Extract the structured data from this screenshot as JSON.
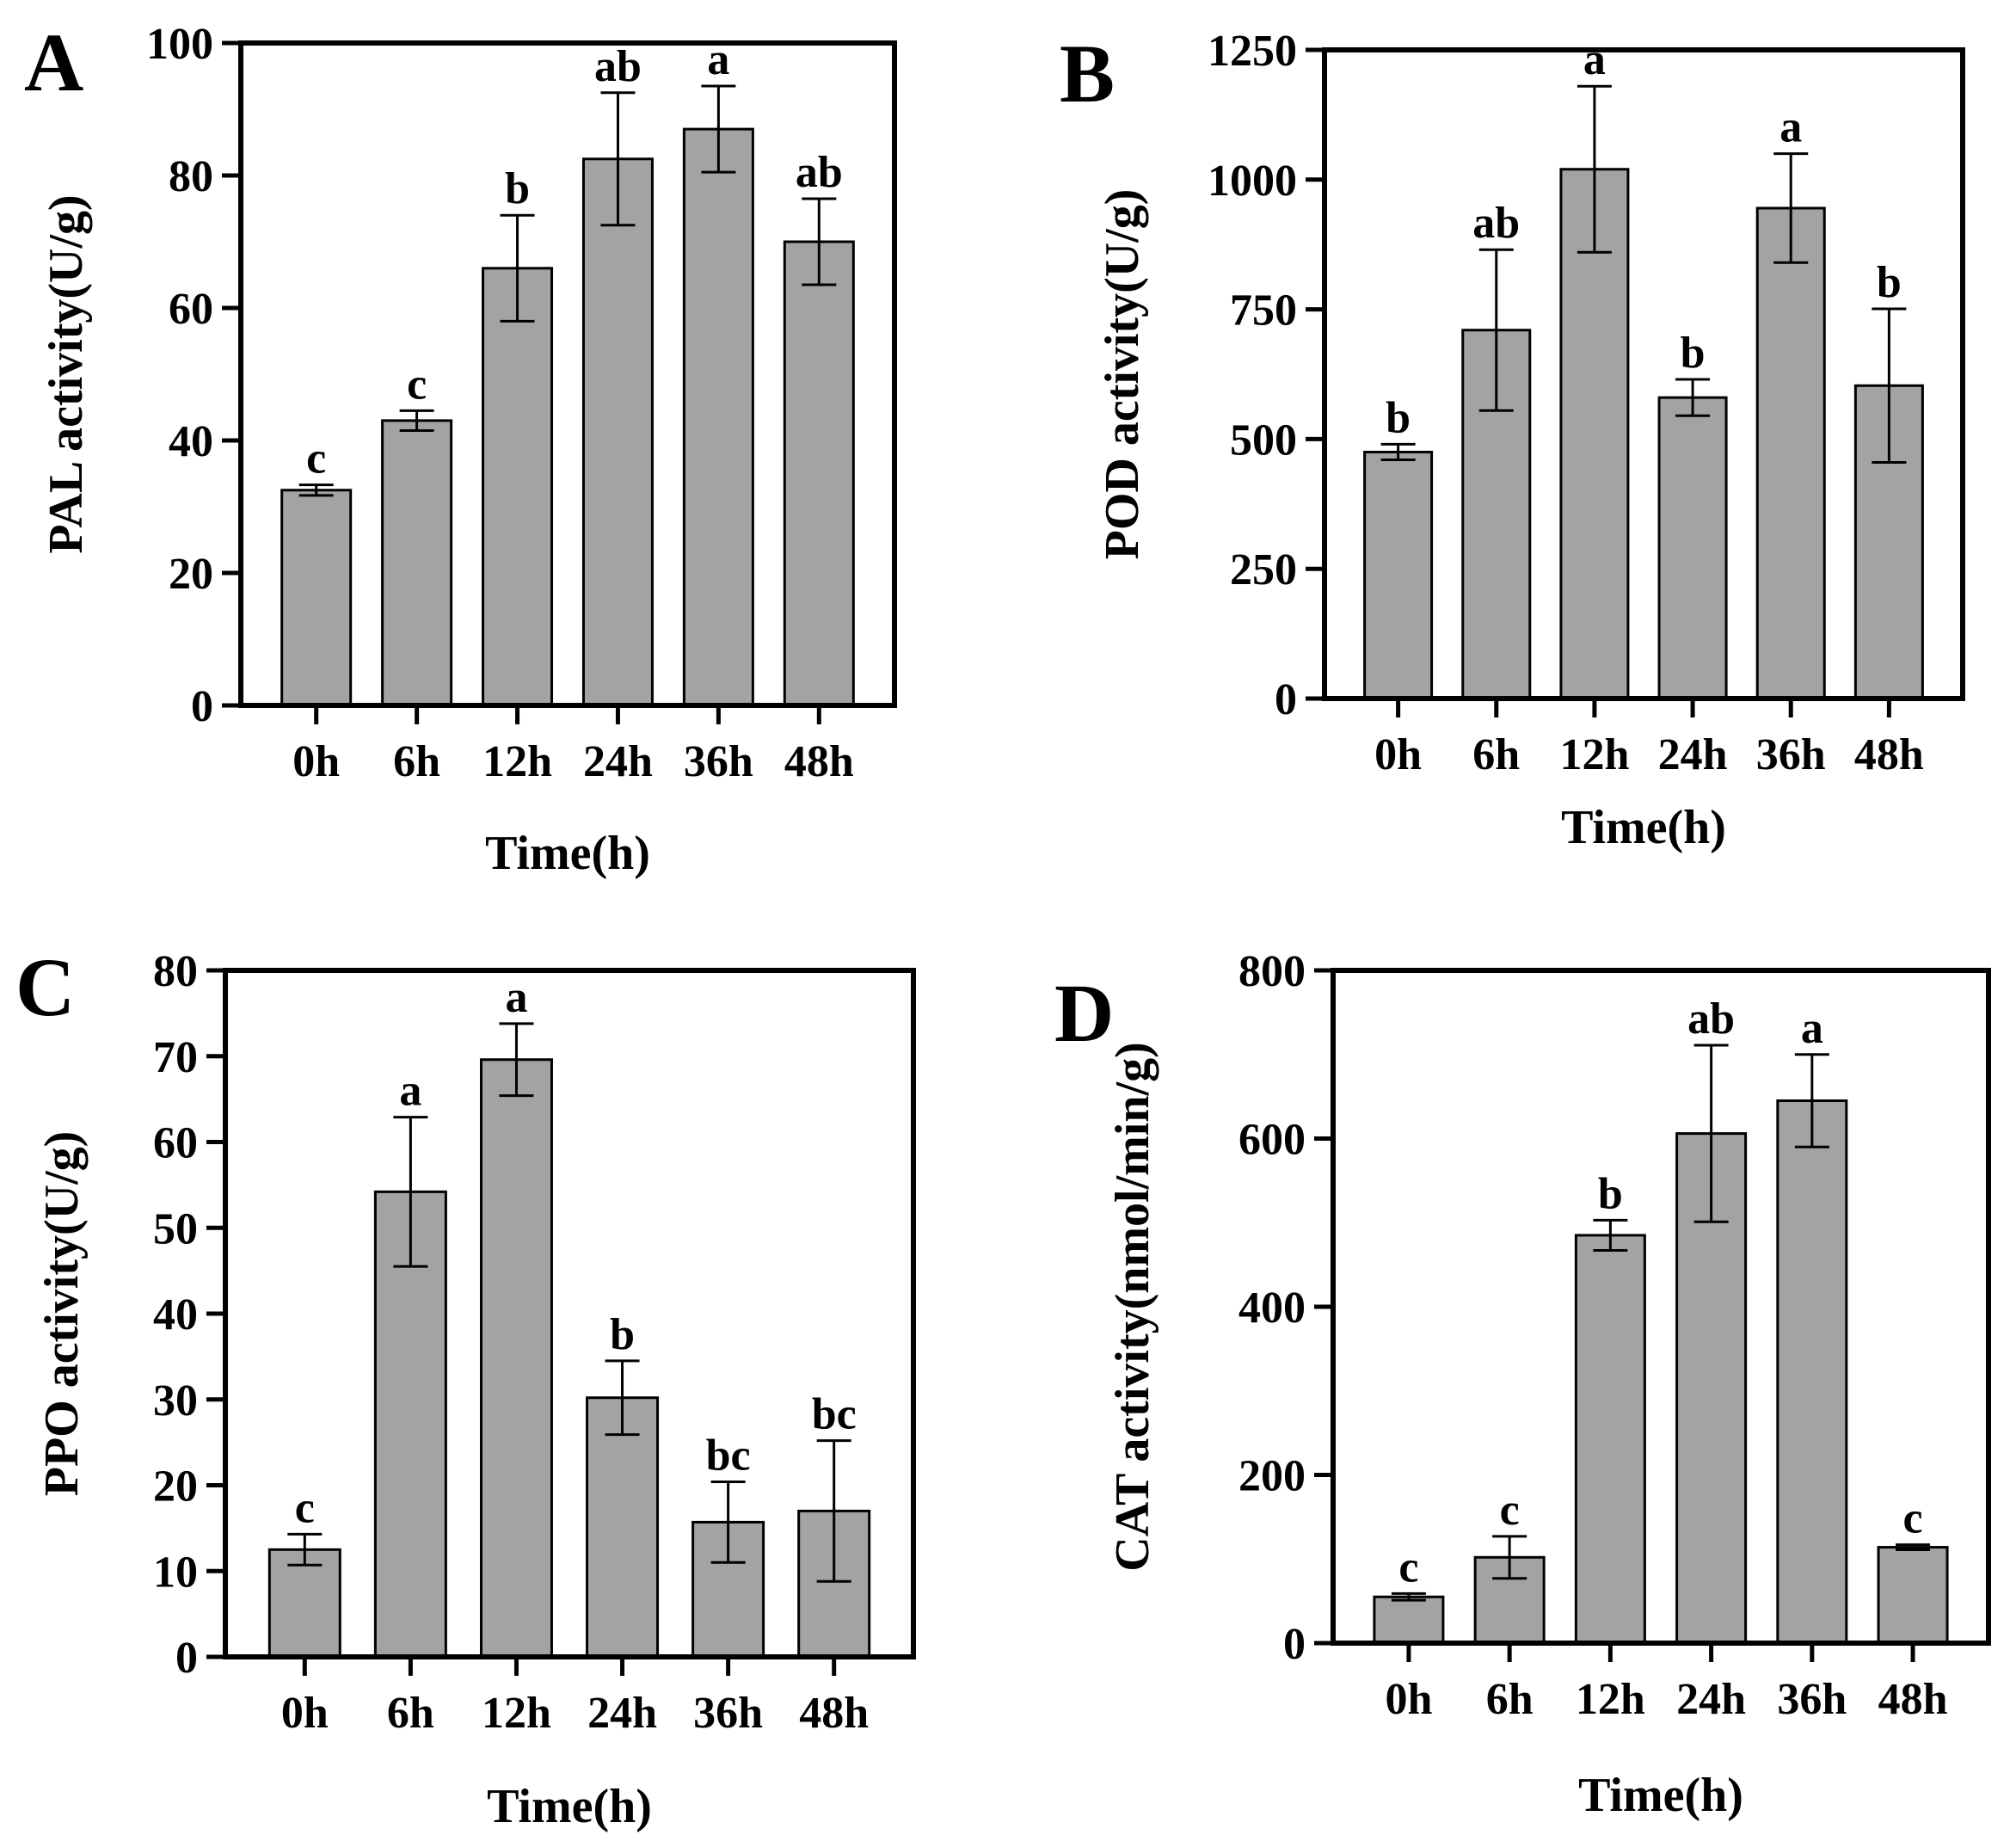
{
  "figure": {
    "chart_data": [
      {
        "panel": "A",
        "type": "bar",
        "ylabel": "PAL activity(U/g)",
        "xlabel": "Time(h)",
        "ylim": [
          0,
          100
        ],
        "yticks": [
          0,
          20,
          40,
          60,
          80,
          100
        ],
        "categories": [
          "0h",
          "6h",
          "12h",
          "24h",
          "36h",
          "48h"
        ],
        "values": [
          32.5,
          43,
          66,
          82.5,
          87,
          70
        ],
        "errors": [
          0.8,
          1.5,
          8,
          10,
          6.5,
          6.5
        ],
        "significance": [
          "c",
          "c",
          "b",
          "ab",
          "a",
          "ab"
        ]
      },
      {
        "panel": "B",
        "type": "bar",
        "ylabel": "POD activity(U/g)",
        "xlabel": "Time(h)",
        "ylim": [
          0,
          1250
        ],
        "yticks": [
          0,
          250,
          500,
          750,
          1000,
          1250
        ],
        "categories": [
          "0h",
          "6h",
          "12h",
          "24h",
          "36h",
          "48h"
        ],
        "values": [
          475,
          710,
          1020,
          580,
          945,
          603
        ],
        "errors": [
          15,
          155,
          160,
          35,
          105,
          148
        ],
        "significance": [
          "b",
          "ab",
          "a",
          "b",
          "a",
          "b"
        ]
      },
      {
        "panel": "C",
        "type": "bar",
        "ylabel": "PPO activity(U/g)",
        "xlabel": "Time(h)",
        "ylim": [
          0,
          80
        ],
        "yticks": [
          0,
          10,
          20,
          30,
          40,
          50,
          60,
          70,
          80
        ],
        "categories": [
          "0h",
          "6h",
          "12h",
          "24h",
          "36h",
          "48h"
        ],
        "values": [
          12.5,
          54.2,
          69.6,
          30.2,
          15.7,
          17
        ],
        "errors": [
          1.8,
          8.7,
          4.2,
          4.3,
          4.7,
          8.2
        ],
        "significance": [
          "c",
          "a",
          "a",
          "b",
          "bc",
          "bc"
        ]
      },
      {
        "panel": "D",
        "type": "bar",
        "ylabel": "CAT activity(nmol/min/g)",
        "xlabel": "Time(h)",
        "ylim": [
          0,
          800
        ],
        "yticks": [
          0,
          200,
          400,
          600,
          800
        ],
        "categories": [
          "0h",
          "6h",
          "12h",
          "24h",
          "36h",
          "48h"
        ],
        "values": [
          55,
          102,
          485,
          606,
          645,
          114
        ],
        "errors": [
          4,
          25,
          18,
          105,
          55,
          3
        ],
        "significance": [
          "c",
          "c",
          "b",
          "ab",
          "a",
          "c"
        ]
      }
    ],
    "colors": {
      "bar_fill": "#a3a3a3",
      "stroke": "#000000"
    }
  }
}
